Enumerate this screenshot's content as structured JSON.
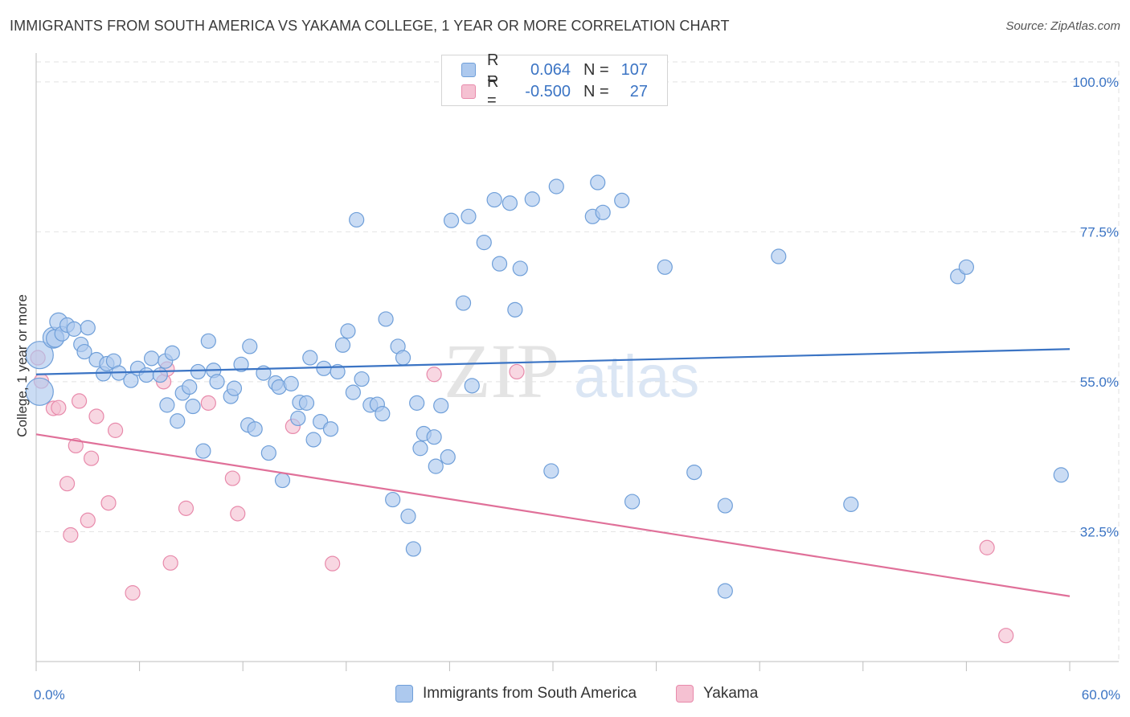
{
  "header": {
    "title": "IMMIGRANTS FROM SOUTH AMERICA VS YAKAMA COLLEGE, 1 YEAR OR MORE CORRELATION CHART",
    "source": "Source: ZipAtlas.com"
  },
  "watermark": {
    "zip": "ZIP",
    "atlas": "atlas"
  },
  "legend": {
    "rows": [
      {
        "r_label": "R =",
        "r_value": "0.064",
        "n_label": "N =",
        "n_value": "107"
      },
      {
        "r_label": "R =",
        "r_value": "-0.500",
        "n_label": "N =",
        "n_value": "27"
      }
    ]
  },
  "bottom_legend": {
    "items": [
      {
        "label": "Immigrants from South America"
      },
      {
        "label": "Yakama"
      }
    ]
  },
  "colors": {
    "blue_fill": "#adc9ee",
    "blue_stroke": "#6f9fd9",
    "blue_line": "#3b74c4",
    "pink_fill": "#f5c1d2",
    "pink_stroke": "#e88aab",
    "pink_line": "#e07099",
    "axis_text": "#3b74c4",
    "grid": "#e2e2e2"
  },
  "chart_data": {
    "type": "scatter",
    "title": "IMMIGRANTS FROM SOUTH AMERICA VS YAKAMA COLLEGE, 1 YEAR OR MORE CORRELATION CHART",
    "ylabel": "College, 1 year or more",
    "xlim": [
      0,
      60
    ],
    "ylim": [
      13,
      103
    ],
    "x_tick_labels": [
      "0.0%",
      "60.0%"
    ],
    "y_ticks": [
      32.5,
      55.0,
      77.5,
      100.0
    ],
    "y_tick_labels": [
      "32.5%",
      "55.0%",
      "77.5%",
      "100.0%"
    ],
    "grid": true,
    "series": [
      {
        "name": "Immigrants from South America",
        "r": 0.064,
        "n": 107,
        "trend": [
          [
            0,
            56.1
          ],
          [
            60,
            59.9
          ]
        ],
        "points": [
          [
            0.2,
            59.0,
            17
          ],
          [
            0.2,
            53.5,
            17
          ],
          [
            1.0,
            61.6,
            13
          ],
          [
            1.1,
            61.5,
            11
          ],
          [
            1.3,
            64.0,
            11
          ],
          [
            1.5,
            62.2,
            9
          ],
          [
            1.8,
            63.5,
            9
          ],
          [
            2.2,
            62.9,
            9
          ],
          [
            2.6,
            60.6,
            9
          ],
          [
            2.8,
            59.5,
            9
          ],
          [
            3.0,
            63.1,
            9
          ],
          [
            3.5,
            58.3,
            9
          ],
          [
            3.9,
            56.2,
            9
          ],
          [
            4.1,
            57.7,
            9
          ],
          [
            4.5,
            58.1,
            9
          ],
          [
            4.8,
            56.3,
            9
          ],
          [
            5.5,
            55.2,
            9
          ],
          [
            5.9,
            57.0,
            9
          ],
          [
            6.4,
            56.0,
            9
          ],
          [
            6.7,
            58.5,
            9
          ],
          [
            7.2,
            56.0,
            9
          ],
          [
            7.5,
            58.1,
            9
          ],
          [
            7.6,
            51.5,
            9
          ],
          [
            7.9,
            59.3,
            9
          ],
          [
            8.2,
            49.1,
            9
          ],
          [
            8.5,
            53.3,
            9
          ],
          [
            8.9,
            54.2,
            9
          ],
          [
            9.1,
            51.3,
            9
          ],
          [
            9.4,
            56.5,
            9
          ],
          [
            9.7,
            44.6,
            9
          ],
          [
            10.0,
            61.1,
            9
          ],
          [
            10.3,
            56.7,
            9
          ],
          [
            10.5,
            55.0,
            9
          ],
          [
            11.3,
            52.8,
            9
          ],
          [
            11.5,
            54.0,
            9
          ],
          [
            11.9,
            57.6,
            9
          ],
          [
            12.3,
            48.5,
            9
          ],
          [
            12.4,
            60.3,
            9
          ],
          [
            12.7,
            47.9,
            9
          ],
          [
            13.2,
            56.3,
            9
          ],
          [
            13.5,
            44.3,
            9
          ],
          [
            13.9,
            54.8,
            9
          ],
          [
            14.1,
            54.2,
            9
          ],
          [
            14.3,
            40.2,
            9
          ],
          [
            14.8,
            54.7,
            9
          ],
          [
            15.2,
            49.5,
            9
          ],
          [
            15.3,
            51.9,
            9
          ],
          [
            15.7,
            51.8,
            9
          ],
          [
            15.9,
            58.6,
            9
          ],
          [
            16.1,
            46.3,
            9
          ],
          [
            16.5,
            49.0,
            9
          ],
          [
            16.7,
            57.0,
            9
          ],
          [
            17.1,
            47.9,
            9
          ],
          [
            17.5,
            56.5,
            9
          ],
          [
            17.8,
            60.5,
            9
          ],
          [
            18.1,
            62.6,
            9
          ],
          [
            18.4,
            53.4,
            9
          ],
          [
            18.6,
            79.3,
            9
          ],
          [
            18.9,
            55.4,
            9
          ],
          [
            19.4,
            51.5,
            9
          ],
          [
            19.8,
            51.6,
            9
          ],
          [
            20.1,
            50.2,
            9
          ],
          [
            20.3,
            64.4,
            9
          ],
          [
            20.7,
            37.3,
            9
          ],
          [
            21.0,
            60.3,
            9
          ],
          [
            21.3,
            58.6,
            9
          ],
          [
            21.6,
            34.8,
            9
          ],
          [
            21.9,
            29.9,
            9
          ],
          [
            22.1,
            51.8,
            9
          ],
          [
            22.3,
            45.0,
            9
          ],
          [
            22.5,
            47.2,
            9
          ],
          [
            23.1,
            46.7,
            9
          ],
          [
            23.2,
            42.3,
            9
          ],
          [
            23.5,
            51.4,
            9
          ],
          [
            23.9,
            43.7,
            9
          ],
          [
            24.1,
            79.2,
            9
          ],
          [
            24.8,
            66.8,
            9
          ],
          [
            25.1,
            79.8,
            9
          ],
          [
            25.3,
            54.4,
            9
          ],
          [
            26.0,
            75.9,
            9
          ],
          [
            26.6,
            82.3,
            9
          ],
          [
            26.9,
            72.7,
            9
          ],
          [
            27.5,
            81.8,
            9
          ],
          [
            27.8,
            65.8,
            9
          ],
          [
            28.1,
            72.0,
            9
          ],
          [
            28.8,
            82.4,
            9
          ],
          [
            29.9,
            41.6,
            9
          ],
          [
            30.2,
            84.3,
            9
          ],
          [
            32.3,
            79.8,
            9
          ],
          [
            32.6,
            84.9,
            9
          ],
          [
            32.9,
            80.4,
            9
          ],
          [
            34.0,
            82.2,
            9
          ],
          [
            34.6,
            37.0,
            9
          ],
          [
            36.5,
            72.2,
            9
          ],
          [
            38.2,
            41.4,
            9
          ],
          [
            40.0,
            36.4,
            9
          ],
          [
            40.0,
            23.6,
            9
          ],
          [
            43.1,
            73.8,
            9
          ],
          [
            47.3,
            36.6,
            9
          ],
          [
            53.5,
            70.8,
            9
          ],
          [
            54.0,
            72.2,
            9
          ],
          [
            59.5,
            41.0,
            9
          ]
        ]
      },
      {
        "name": "Yakama",
        "r": -0.5,
        "n": 27,
        "trend": [
          [
            0,
            47.1
          ],
          [
            60,
            22.8
          ]
        ],
        "points": [
          [
            0.1,
            58.6,
            9
          ],
          [
            0.3,
            55.1,
            9
          ],
          [
            1.0,
            51.0,
            9
          ],
          [
            1.3,
            51.1,
            9
          ],
          [
            1.8,
            39.7,
            9
          ],
          [
            2.0,
            32.0,
            9
          ],
          [
            2.3,
            45.4,
            9
          ],
          [
            2.5,
            52.1,
            9
          ],
          [
            3.0,
            34.2,
            9
          ],
          [
            3.2,
            43.5,
            9
          ],
          [
            3.5,
            49.8,
            9
          ],
          [
            4.2,
            36.8,
            9
          ],
          [
            4.6,
            47.7,
            9
          ],
          [
            5.6,
            23.3,
            9
          ],
          [
            7.4,
            55.0,
            9
          ],
          [
            7.6,
            56.9,
            9
          ],
          [
            7.8,
            27.8,
            9
          ],
          [
            8.7,
            36.0,
            9
          ],
          [
            10.0,
            51.8,
            9
          ],
          [
            11.4,
            40.5,
            9
          ],
          [
            11.7,
            35.2,
            9
          ],
          [
            14.9,
            48.3,
            9
          ],
          [
            17.2,
            27.7,
            9
          ],
          [
            23.1,
            56.1,
            9
          ],
          [
            27.9,
            56.5,
            9
          ],
          [
            55.2,
            30.1,
            9
          ],
          [
            56.3,
            16.9,
            9
          ]
        ]
      }
    ]
  }
}
